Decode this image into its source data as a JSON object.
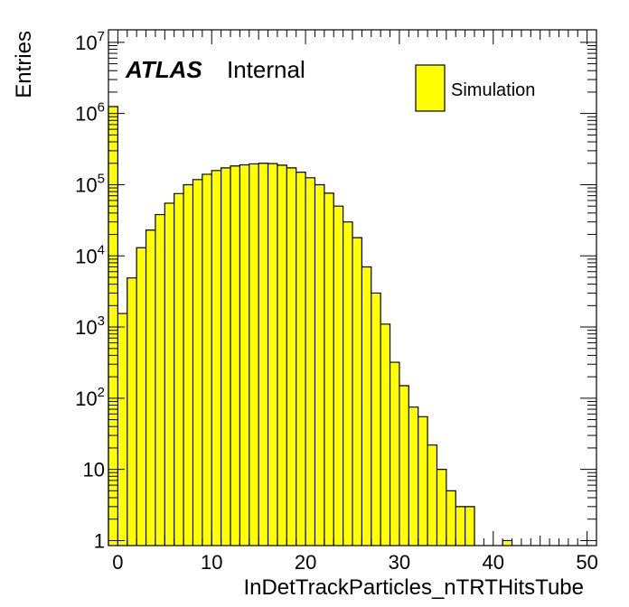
{
  "chart_data": {
    "type": "bar",
    "histogram": true,
    "xlabel": "InDetTrackParticles_nTRTHitsTube",
    "ylabel": "Entries",
    "xlim": [
      -1,
      51
    ],
    "ylim": [
      0.85,
      15000000
    ],
    "yscale": "log",
    "x_ticks": [
      0,
      10,
      20,
      30,
      40,
      50
    ],
    "y_ticks": [
      {
        "value": 1,
        "base": "1",
        "exp": ""
      },
      {
        "value": 10,
        "base": "10",
        "exp": ""
      },
      {
        "value": 100,
        "base": "10",
        "exp": "2"
      },
      {
        "value": 1000,
        "base": "10",
        "exp": "3"
      },
      {
        "value": 10000,
        "base": "10",
        "exp": "4"
      },
      {
        "value": 100000,
        "base": "10",
        "exp": "5"
      },
      {
        "value": 1000000,
        "base": "10",
        "exp": "6"
      },
      {
        "value": 10000000,
        "base": "10",
        "exp": "7"
      }
    ],
    "bin_edges_start": -1,
    "bin_width": 1,
    "values": [
      1250000,
      1550,
      4900,
      13000,
      23000,
      38000,
      55000,
      75000,
      100000,
      118000,
      140000,
      158000,
      172000,
      183000,
      190000,
      196000,
      200000,
      198000,
      188000,
      172000,
      150000,
      125000,
      100000,
      76000,
      50000,
      30000,
      18000,
      7000,
      3000,
      1100,
      320,
      150,
      75,
      55,
      22,
      10,
      5,
      3,
      3,
      0,
      0,
      0,
      1,
      0,
      0,
      0,
      0,
      0,
      0,
      0,
      0,
      0
    ],
    "fill_color": "#ffff00",
    "line_color": "#000000",
    "grid": false,
    "legend": {
      "position": "top-right",
      "entries": [
        {
          "label": "Simulation",
          "color": "#ffff00"
        }
      ]
    }
  },
  "labels": {
    "atlas": "ATLAS",
    "internal": "Internal"
  }
}
